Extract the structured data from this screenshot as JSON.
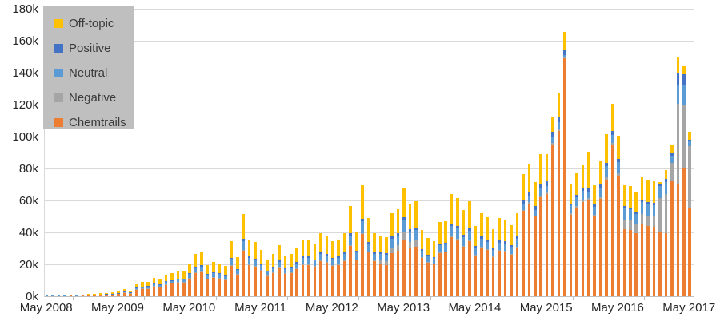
{
  "chart_data": {
    "type": "bar",
    "stacked": true,
    "title": "",
    "xlabel": "",
    "ylabel": "",
    "ylim": [
      0,
      180
    ],
    "y_unit": "k (thousands)",
    "grid": "horizontal",
    "legend_position": "top-left",
    "y_tick_labels": [
      "0k",
      "20k",
      "40k",
      "60k",
      "80k",
      "100k",
      "120k",
      "140k",
      "160k",
      "180k"
    ],
    "x_tick_labels": [
      "May 2008",
      "May 2009",
      "May 2010",
      "May 2011",
      "May 2012",
      "May 2013",
      "May 2014",
      "May 2015",
      "May 2016",
      "May 2017"
    ],
    "x_start_month": "May 2008",
    "x_end_month": "May 2017",
    "months_per_bar": 1,
    "n_bars": 109,
    "series": [
      {
        "name": "Chemtrails",
        "color": "#ED7D31",
        "values": [
          0.4,
          0.5,
          0.6,
          0.6,
          0.7,
          0.6,
          0.7,
          0.7,
          0.8,
          1.0,
          1.2,
          1.4,
          1.7,
          2.5,
          2.0,
          4.2,
          4.9,
          5.0,
          6.3,
          5.9,
          7.6,
          8.2,
          8.7,
          9.0,
          11.5,
          14.7,
          15.4,
          11.0,
          11.9,
          11.5,
          10.5,
          19.4,
          13.8,
          28.7,
          19.9,
          18.9,
          16.1,
          12.9,
          14.7,
          18.0,
          14.3,
          14.7,
          17.1,
          19.9,
          19.9,
          18.5,
          22.2,
          21.3,
          19.4,
          19.9,
          22.2,
          31.5,
          22.7,
          39.0,
          27.3,
          22.2,
          19.8,
          19.3,
          27.0,
          28.4,
          35.4,
          30.2,
          31.0,
          24.0,
          21.1,
          20.1,
          26.9,
          27.4,
          37.0,
          35.6,
          31.2,
          34.6,
          25.4,
          30.3,
          28.8,
          24.5,
          28.3,
          27.8,
          25.9,
          30.3,
          53.4,
          58.1,
          49.9,
          62.2,
          64.0,
          95.0,
          103.5,
          149.0,
          50.8,
          55.6,
          59.2,
          60.5,
          50.2,
          61.0,
          72.9,
          94.7,
          75.5,
          41.8,
          41.3,
          39.3,
          44.8,
          43.8,
          43.3,
          40.5,
          39.7,
          72.0,
          70.5,
          80.5,
          55.5
        ]
      },
      {
        "name": "Negative",
        "color": "#A5A5A5",
        "values": [
          0,
          0,
          0,
          0,
          0,
          0,
          0,
          0,
          0,
          0,
          0,
          0,
          0,
          0.05,
          0.05,
          0.1,
          0.1,
          0.1,
          0.1,
          0.1,
          0.1,
          0.15,
          0.15,
          0.15,
          0.2,
          0.25,
          0.3,
          0.2,
          0.2,
          0.2,
          0.2,
          0.35,
          0.25,
          0.5,
          0.35,
          0.35,
          0.3,
          0.25,
          0.25,
          0.3,
          0.25,
          0.25,
          0.3,
          0.35,
          0.35,
          0.35,
          0.4,
          0.4,
          0.35,
          0.35,
          0.4,
          0.55,
          0.4,
          0.7,
          0.5,
          0.4,
          2.65,
          2.6,
          3.65,
          3.85,
          4.75,
          4.05,
          4.2,
          0.4,
          0.35,
          0.35,
          0.45,
          0.45,
          0.65,
          0.6,
          0.55,
          0.6,
          0.45,
          0.5,
          0.5,
          0.4,
          0.5,
          0.5,
          0.45,
          0.5,
          0.75,
          0.85,
          0.7,
          0.9,
          0.8,
          1.0,
          1.0,
          0.5,
          1.05,
          1.15,
          1.25,
          1.0,
          1.05,
          1.25,
          1.5,
          1.3,
          1.5,
          6.25,
          6.2,
          5.9,
          6.7,
          6.6,
          6.5,
          20.8,
          24.2,
          11.5,
          50.0,
          39.5,
          38.3
        ]
      },
      {
        "name": "Neutral",
        "color": "#5B9BD5",
        "values": [
          0.1,
          0.1,
          0.1,
          0.1,
          0.1,
          0.1,
          0.1,
          0.15,
          0.2,
          0.2,
          0.25,
          0.25,
          0.3,
          0.5,
          0.35,
          0.8,
          0.9,
          0.95,
          1.2,
          1.1,
          1.4,
          1.55,
          1.6,
          1.7,
          2.15,
          2.75,
          2.9,
          2.1,
          2.25,
          2.15,
          2.0,
          3.65,
          2.6,
          5.4,
          3.7,
          3.55,
          3.0,
          2.4,
          2.75,
          3.4,
          2.7,
          2.75,
          3.2,
          3.7,
          3.7,
          3.45,
          4.15,
          4.0,
          3.65,
          3.7,
          4.15,
          5.9,
          4.25,
          7.3,
          5.1,
          4.15,
          4.0,
          3.9,
          5.45,
          5.75,
          7.15,
          6.1,
          6.25,
          4.1,
          3.65,
          3.45,
          4.65,
          4.7,
          6.4,
          6.1,
          5.4,
          5.95,
          4.4,
          5.2,
          4.95,
          4.2,
          4.9,
          4.8,
          4.45,
          5.2,
          3.8,
          4.15,
          3.55,
          4.45,
          4.0,
          4.0,
          4.5,
          1.5,
          4.95,
          5.4,
          5.75,
          4.0,
          4.9,
          5.95,
          7.1,
          5.0,
          7.0,
          7.0,
          6.9,
          6.55,
          7.45,
          7.3,
          7.2,
          7.5,
          7.4,
          4.5,
          12.0,
          12.0,
          3.0
        ]
      },
      {
        "name": "Positive",
        "color": "#4472C4",
        "values": [
          0,
          0,
          0,
          0,
          0,
          0,
          0,
          0.05,
          0.05,
          0.05,
          0.05,
          0.05,
          0.1,
          0.1,
          0.1,
          0.2,
          0.2,
          0.25,
          0.3,
          0.25,
          0.35,
          0.35,
          0.4,
          0.4,
          0.5,
          0.65,
          0.7,
          0.5,
          0.55,
          0.5,
          0.45,
          0.85,
          0.6,
          1.3,
          0.9,
          0.85,
          0.7,
          0.55,
          0.65,
          0.8,
          0.65,
          0.65,
          0.75,
          0.9,
          0.9,
          0.8,
          1.0,
          0.95,
          0.85,
          0.9,
          1.0,
          1.4,
          1.0,
          1.75,
          1.2,
          1.0,
          1.15,
          1.1,
          1.55,
          1.65,
          2.05,
          1.75,
          1.8,
          1.05,
          0.9,
          0.85,
          1.15,
          1.2,
          1.6,
          1.55,
          1.35,
          1.5,
          1.1,
          1.3,
          1.25,
          1.05,
          1.2,
          1.2,
          1.1,
          1.3,
          2.3,
          2.5,
          2.15,
          2.65,
          3.0,
          3.2,
          3.5,
          3.5,
          1.4,
          1.55,
          1.65,
          2.0,
          1.4,
          1.7,
          2.05,
          2.5,
          2.0,
          1.4,
          1.35,
          1.3,
          1.5,
          1.45,
          1.45,
          1.0,
          2.0,
          2.0,
          7.5,
          7.0,
          1.2
        ]
      },
      {
        "name": "Off-topic",
        "color": "#FFC000",
        "values": [
          0.3,
          0.3,
          0.3,
          0.3,
          0.4,
          0.3,
          0.4,
          0.4,
          0.45,
          0.55,
          0.7,
          0.8,
          0.9,
          1.35,
          1.0,
          2.2,
          2.7,
          2.7,
          3.4,
          3.15,
          4.05,
          4.45,
          4.65,
          4.75,
          6.15,
          7.95,
          8.2,
          5.9,
          6.4,
          6.15,
          5.65,
          10.45,
          7.45,
          15.4,
          10.65,
          10.15,
          8.7,
          6.9,
          7.95,
          9.7,
          7.6,
          7.95,
          9.15,
          10.65,
          10.65,
          9.9,
          11.95,
          11.35,
          10.45,
          10.65,
          11.95,
          16.95,
          12.15,
          20.95,
          14.7,
          11.95,
          10.4,
          10.3,
          14.35,
          15.05,
          18.65,
          15.9,
          16.45,
          11.75,
          10.3,
          9.95,
          13.15,
          13.45,
          18.15,
          17.45,
          15.3,
          17.05,
          12.45,
          14.9,
          14.2,
          12.05,
          13.9,
          13.7,
          12.8,
          14.9,
          16.05,
          17.4,
          15.0,
          18.6,
          17.0,
          9.0,
          15.0,
          11.0,
          12.3,
          13.5,
          14.35,
          23.0,
          12.15,
          14.8,
          17.75,
          17.0,
          14.5,
          13.25,
          13.05,
          12.45,
          14.25,
          13.85,
          13.75,
          1.5,
          5.5,
          5.0,
          10.0,
          5.0,
          5.0
        ]
      }
    ]
  },
  "legend": {
    "background": "#bfbfbf",
    "items": [
      {
        "label": "Off-topic",
        "color": "#FFC000"
      },
      {
        "label": "Positive",
        "color": "#4472C4"
      },
      {
        "label": "Neutral",
        "color": "#5B9BD5"
      },
      {
        "label": "Negative",
        "color": "#A5A5A5"
      },
      {
        "label": "Chemtrails",
        "color": "#ED7D31"
      }
    ]
  },
  "style_colors": {
    "gridline": "#d9d9d9",
    "axis_line": "#bfbfbf",
    "axis_text": "#262626"
  }
}
